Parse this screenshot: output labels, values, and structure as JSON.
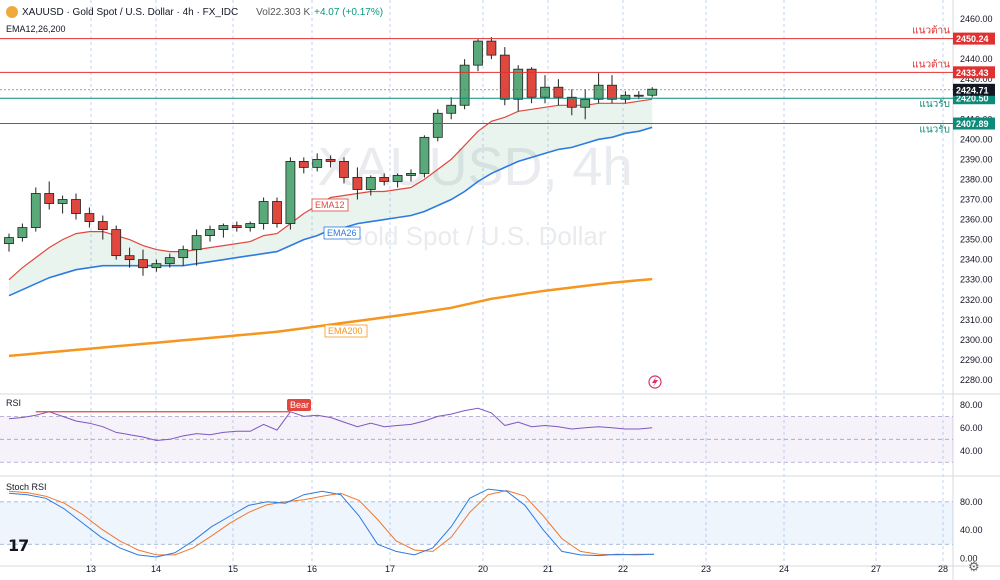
{
  "header": {
    "title": "XAUUSD · Gold Spot / U.S. Dollar · 4h · FX_IDC",
    "volume": "Vol22.303 K",
    "change": "+4.07 (+0.17%)",
    "indicator": "EMA12,26,200"
  },
  "watermark": {
    "line1": "XAUUSD, 4h",
    "line2": "Gold Spot / U.S. Dollar"
  },
  "panes": {
    "rsi_label": "RSI",
    "stoch_label": "Stoch RSI"
  },
  "chart_data": {
    "type": "candlestick",
    "x_labels": [
      "13",
      "14",
      "15",
      "16",
      "17",
      "20",
      "21",
      "22",
      "23",
      "24",
      "27",
      "28"
    ],
    "price_axis": {
      "ticks": [
        2460,
        2450,
        2440,
        2430,
        2420,
        2410,
        2400,
        2390,
        2380,
        2370,
        2360,
        2350,
        2340,
        2330,
        2320,
        2310,
        2300,
        2290,
        2280
      ],
      "tick_labels": [
        "2460.00",
        "2450.00",
        "2440.00",
        "2430.00",
        "2420.00",
        "2410.00",
        "2400.00",
        "2390.00",
        "2380.00",
        "2370.00",
        "2360.00",
        "2350.00",
        "2340.00",
        "2330.00",
        "2320.00",
        "2310.00",
        "2300.00",
        "2290.00",
        "2280.00"
      ],
      "range": [
        2273,
        2467
      ]
    },
    "rsi_axis": {
      "tick_labels": [
        "80.00",
        "60.00",
        "40.00"
      ],
      "ticks": [
        80,
        60,
        40
      ],
      "range": [
        25,
        86
      ]
    },
    "stoch_axis": {
      "tick_labels": [
        "80.00",
        "40.00",
        "0.00"
      ],
      "ticks": [
        80,
        40,
        0
      ],
      "range": [
        -5,
        108
      ]
    },
    "candles": [
      {
        "o": 2348,
        "h": 2353,
        "l": 2344,
        "c": 2351
      },
      {
        "o": 2351,
        "h": 2358,
        "l": 2349,
        "c": 2356
      },
      {
        "o": 2356,
        "h": 2376,
        "l": 2354,
        "c": 2373
      },
      {
        "o": 2373,
        "h": 2379,
        "l": 2365,
        "c": 2368
      },
      {
        "o": 2368,
        "h": 2372,
        "l": 2363,
        "c": 2370
      },
      {
        "o": 2370,
        "h": 2373,
        "l": 2360,
        "c": 2363
      },
      {
        "o": 2363,
        "h": 2366,
        "l": 2356,
        "c": 2359
      },
      {
        "o": 2359,
        "h": 2362,
        "l": 2350,
        "c": 2355
      },
      {
        "o": 2355,
        "h": 2357,
        "l": 2340,
        "c": 2342
      },
      {
        "o": 2342,
        "h": 2346,
        "l": 2336,
        "c": 2340
      },
      {
        "o": 2340,
        "h": 2345,
        "l": 2332,
        "c": 2336
      },
      {
        "o": 2336,
        "h": 2340,
        "l": 2334,
        "c": 2338
      },
      {
        "o": 2338,
        "h": 2343,
        "l": 2336,
        "c": 2341
      },
      {
        "o": 2341,
        "h": 2347,
        "l": 2337,
        "c": 2345
      },
      {
        "o": 2345,
        "h": 2355,
        "l": 2337,
        "c": 2352
      },
      {
        "o": 2352,
        "h": 2357,
        "l": 2349,
        "c": 2355
      },
      {
        "o": 2355,
        "h": 2358,
        "l": 2351,
        "c": 2357
      },
      {
        "o": 2357,
        "h": 2359,
        "l": 2354,
        "c": 2356
      },
      {
        "o": 2356,
        "h": 2359,
        "l": 2354,
        "c": 2358
      },
      {
        "o": 2358,
        "h": 2371,
        "l": 2355,
        "c": 2369
      },
      {
        "o": 2369,
        "h": 2371,
        "l": 2356,
        "c": 2358
      },
      {
        "o": 2358,
        "h": 2391,
        "l": 2355,
        "c": 2389
      },
      {
        "o": 2389,
        "h": 2391,
        "l": 2383,
        "c": 2386
      },
      {
        "o": 2386,
        "h": 2393,
        "l": 2384,
        "c": 2390
      },
      {
        "o": 2390,
        "h": 2392,
        "l": 2386,
        "c": 2389
      },
      {
        "o": 2389,
        "h": 2391,
        "l": 2378,
        "c": 2381
      },
      {
        "o": 2381,
        "h": 2386,
        "l": 2370,
        "c": 2375
      },
      {
        "o": 2375,
        "h": 2382,
        "l": 2372,
        "c": 2381
      },
      {
        "o": 2381,
        "h": 2383,
        "l": 2377,
        "c": 2379
      },
      {
        "o": 2379,
        "h": 2383,
        "l": 2376,
        "c": 2382
      },
      {
        "o": 2382,
        "h": 2385,
        "l": 2379,
        "c": 2383
      },
      {
        "o": 2383,
        "h": 2402,
        "l": 2381,
        "c": 2401
      },
      {
        "o": 2401,
        "h": 2415,
        "l": 2399,
        "c": 2413
      },
      {
        "o": 2413,
        "h": 2421,
        "l": 2410,
        "c": 2417
      },
      {
        "o": 2417,
        "h": 2440,
        "l": 2415,
        "c": 2437
      },
      {
        "o": 2437,
        "h": 2450,
        "l": 2434,
        "c": 2449
      },
      {
        "o": 2449,
        "h": 2451,
        "l": 2440,
        "c": 2442
      },
      {
        "o": 2442,
        "h": 2446,
        "l": 2417,
        "c": 2420
      },
      {
        "o": 2420,
        "h": 2437,
        "l": 2414,
        "c": 2435
      },
      {
        "o": 2435,
        "h": 2436,
        "l": 2418,
        "c": 2421
      },
      {
        "o": 2421,
        "h": 2432,
        "l": 2418,
        "c": 2426
      },
      {
        "o": 2426,
        "h": 2430,
        "l": 2417,
        "c": 2421
      },
      {
        "o": 2421,
        "h": 2425,
        "l": 2412,
        "c": 2416
      },
      {
        "o": 2416,
        "h": 2425,
        "l": 2410,
        "c": 2420
      },
      {
        "o": 2420,
        "h": 2433,
        "l": 2418,
        "c": 2427
      },
      {
        "o": 2427,
        "h": 2432,
        "l": 2418,
        "c": 2420
      },
      {
        "o": 2420,
        "h": 2424,
        "l": 2418,
        "c": 2422
      },
      {
        "o": 2422,
        "h": 2424,
        "l": 2420,
        "c": 2422
      },
      {
        "o": 2422,
        "h": 2426,
        "l": 2421,
        "c": 2425
      }
    ],
    "ema12": [
      2330,
      2336,
      2341,
      2346,
      2350,
      2353,
      2354,
      2354,
      2352,
      2350,
      2347,
      2345,
      2344,
      2344,
      2345,
      2346,
      2347,
      2348,
      2349,
      2352,
      2353,
      2358,
      2363,
      2367,
      2371,
      2372,
      2373,
      2374,
      2374,
      2375,
      2376,
      2380,
      2385,
      2390,
      2397,
      2404,
      2409,
      2411,
      2414,
      2415,
      2416,
      2417,
      2417,
      2417,
      2418,
      2418,
      2418,
      2419,
      2420
    ],
    "ema26": [
      2322,
      2325,
      2328,
      2331,
      2333,
      2335,
      2336,
      2337,
      2337,
      2337,
      2337,
      2337,
      2337,
      2337,
      2338,
      2339,
      2340,
      2341,
      2342,
      2343,
      2344,
      2347,
      2350,
      2352,
      2355,
      2356,
      2358,
      2359,
      2360,
      2361,
      2362,
      2364,
      2367,
      2370,
      2374,
      2379,
      2383,
      2386,
      2389,
      2391,
      2393,
      2395,
      2396,
      2398,
      2400,
      2401,
      2403,
      2404,
      2406
    ],
    "ema200": [
      2292,
      2292.6,
      2293.2,
      2293.8,
      2294.4,
      2295,
      2295.6,
      2296.2,
      2296.8,
      2297.4,
      2298,
      2298.6,
      2299.2,
      2299.8,
      2300.4,
      2301,
      2301.6,
      2302.2,
      2302.8,
      2303.4,
      2304,
      2304.9,
      2305.8,
      2306.7,
      2307.6,
      2308.5,
      2309.4,
      2310.3,
      2311.2,
      2312.1,
      2313,
      2314,
      2315,
      2316,
      2317.5,
      2319,
      2320.5,
      2321.5,
      2322.5,
      2323.5,
      2324.5,
      2325.3,
      2326.1,
      2326.9,
      2327.7,
      2328.5,
      2329.1,
      2329.7,
      2330.3
    ],
    "rsi": [
      68,
      69,
      71,
      74,
      70,
      66,
      64,
      61,
      56,
      54,
      52,
      49,
      50,
      53,
      55,
      54,
      56,
      57,
      57,
      63,
      58,
      74,
      70,
      71,
      69,
      65,
      61,
      64,
      61,
      62,
      63,
      66,
      70,
      72,
      75,
      77,
      73,
      62,
      65,
      61,
      62,
      61,
      59,
      60,
      61,
      60,
      59,
      59,
      60
    ],
    "stoch_k": [
      92,
      90,
      85,
      70,
      50,
      30,
      15,
      5,
      2,
      8,
      25,
      45,
      60,
      75,
      80,
      78,
      90,
      95,
      90,
      60,
      20,
      10,
      5,
      15,
      45,
      85,
      98,
      95,
      75,
      40,
      10,
      5,
      4,
      6,
      5,
      6
    ],
    "stoch_d": [
      95,
      93,
      88,
      78,
      62,
      42,
      25,
      12,
      5,
      5,
      15,
      32,
      50,
      65,
      76,
      80,
      83,
      88,
      92,
      82,
      55,
      25,
      12,
      10,
      30,
      65,
      90,
      96,
      88,
      60,
      28,
      10,
      6,
      5,
      6,
      6
    ],
    "levels": [
      {
        "name": "แนวต้าน",
        "value": "2450.24",
        "price": 2450.24,
        "color": "#e03131"
      },
      {
        "name": "แนวต้าน",
        "value": "2433.43",
        "price": 2433.43,
        "color": "#e03131"
      },
      {
        "name": "แนวรับ",
        "value": "2420.50",
        "price": 2420.5,
        "color": "#0d8a7a"
      },
      {
        "name": "แนวรับ",
        "value": "2407.89",
        "price": 2407.89,
        "color": "#0d8a7a"
      }
    ],
    "current_price": {
      "value": "2424.71",
      "price": 2424.71
    },
    "ema_labels": {
      "ema12": "EMA12",
      "ema26": "EMA26",
      "ema200": "EMA200"
    },
    "bear_label": "Bear",
    "colors": {
      "up": "#5aa97a",
      "down": "#e0483f",
      "ema12": "#e0483f",
      "ema26": "#2d7be0",
      "ema200": "#f5961f",
      "rsi": "#7e57c2",
      "stoch_k": "#2d7be0",
      "stoch_d": "#f07830"
    }
  }
}
